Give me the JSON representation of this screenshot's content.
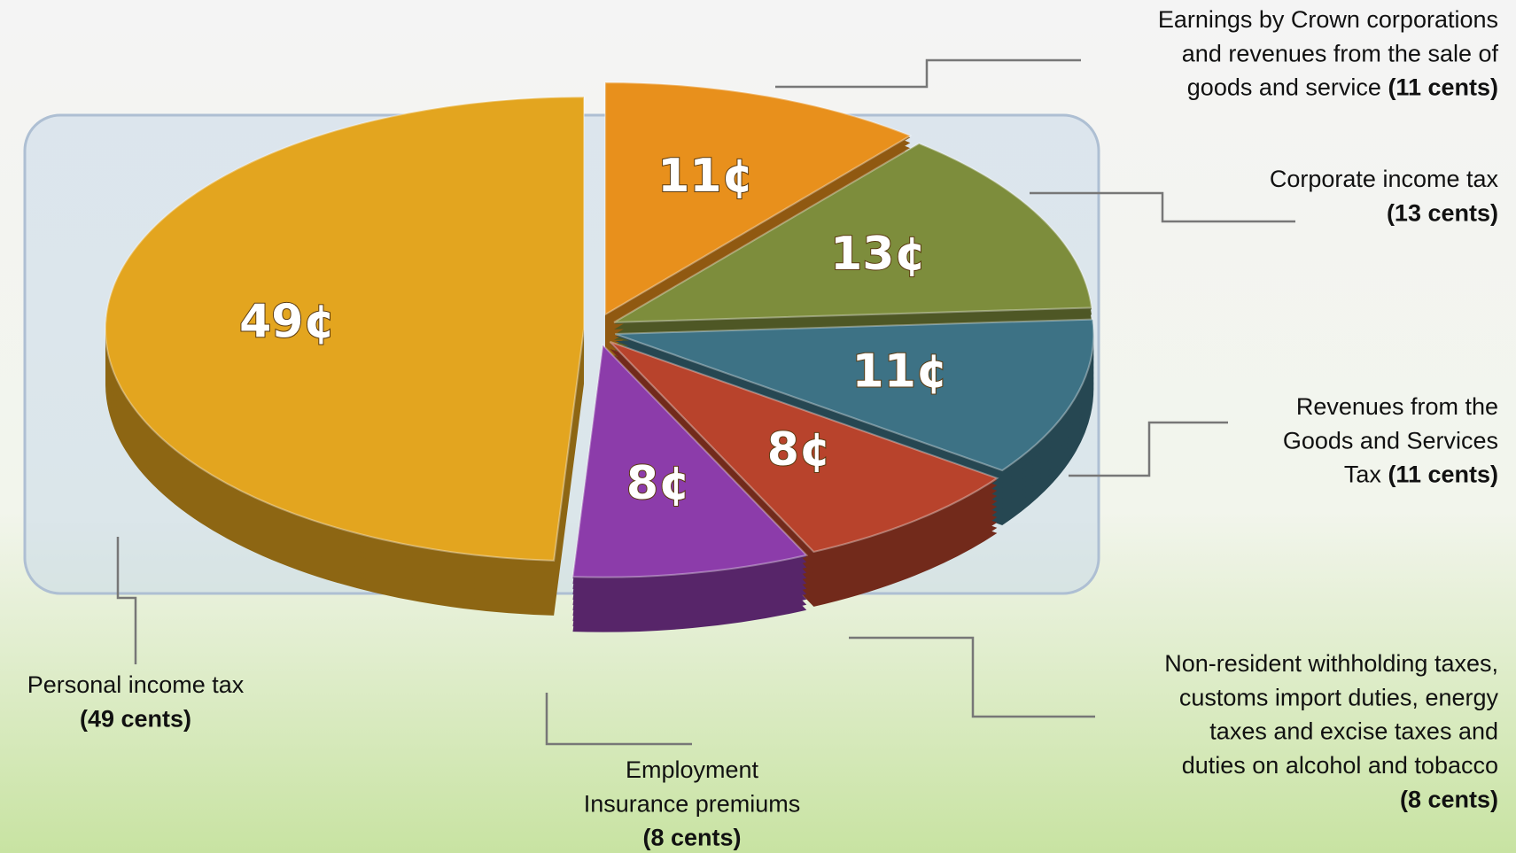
{
  "chart_data": {
    "type": "pie",
    "values": [
      11,
      13,
      11,
      8,
      8,
      49
    ],
    "value_labels": [
      "11¢",
      "13¢",
      "11¢",
      "8¢",
      "8¢",
      "49¢"
    ],
    "colors": [
      "#e8901c",
      "#7d8d3c",
      "#3d7285",
      "#b8432c",
      "#8c3caa",
      "#e3a51f"
    ],
    "labels": [
      {
        "lines": [
          "Earnings by Crown corporations",
          "and revenues from the sale of",
          "goods and service"
        ],
        "amount": "(11 cents)"
      },
      {
        "lines": [
          "Corporate income tax"
        ],
        "amount": "(13 cents)"
      },
      {
        "lines": [
          "Revenues from the",
          "Goods and Services",
          "Tax"
        ],
        "amount": "(11 cents)"
      },
      {
        "lines": [
          "Non-resident withholding taxes,",
          "customs import duties, energy",
          "taxes and excise taxes and",
          "duties on alcohol and tobacco"
        ],
        "amount": "(8 cents)"
      },
      {
        "lines": [
          "Employment",
          "Insurance premiums"
        ],
        "amount": "(8 cents)"
      },
      {
        "lines": [
          "Personal income tax"
        ],
        "amount": "(49 cents)"
      }
    ]
  }
}
